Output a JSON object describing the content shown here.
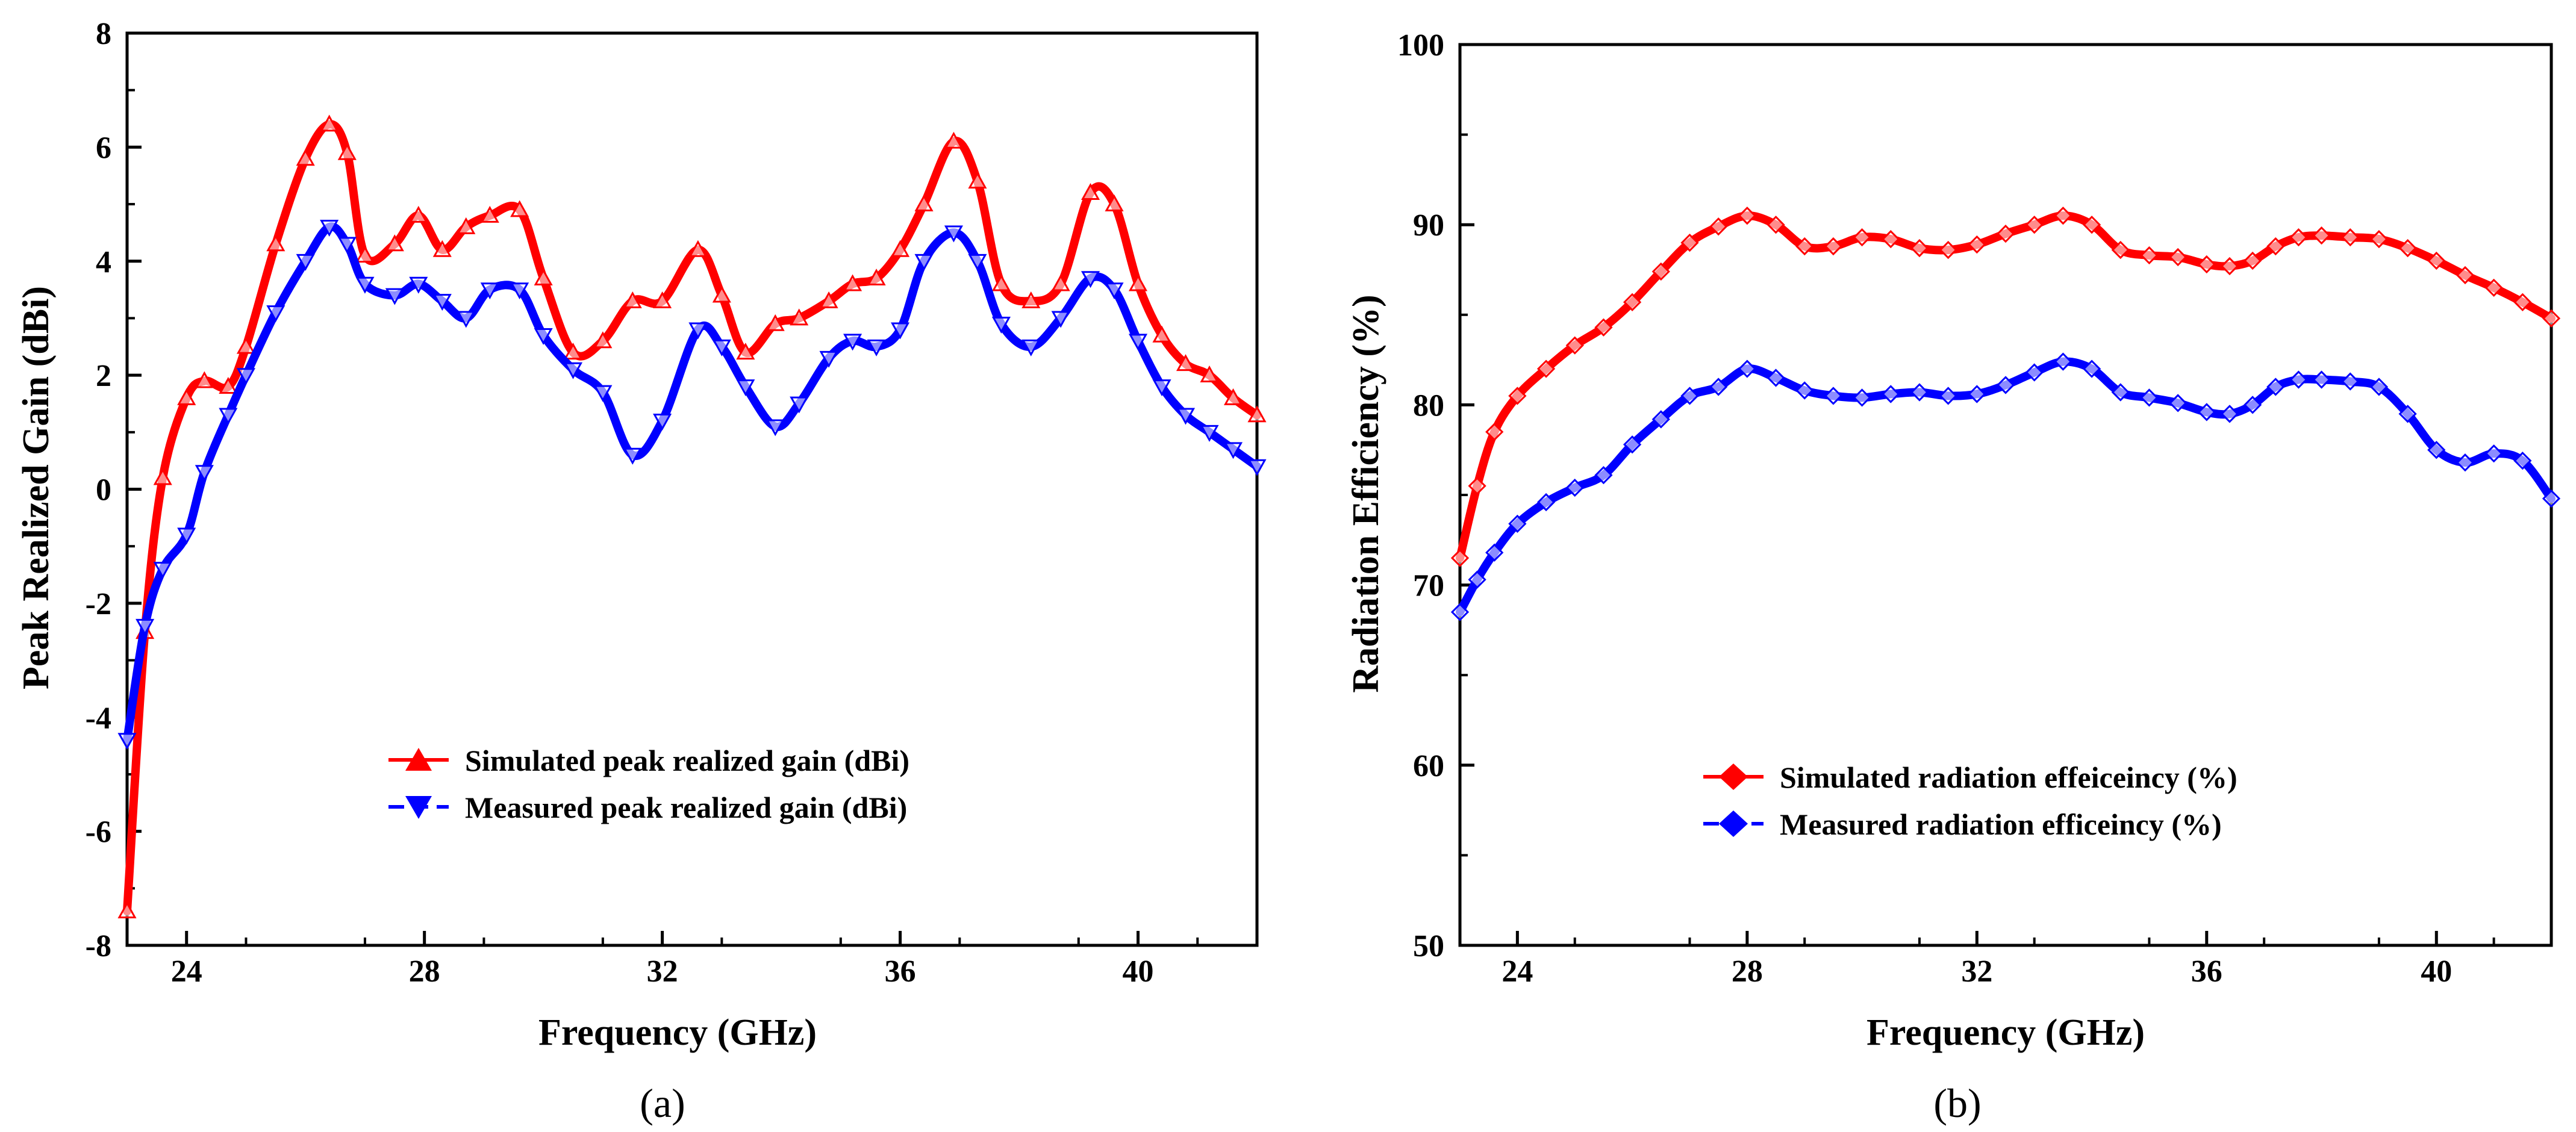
{
  "chart_data": [
    {
      "panel_label": "(a)",
      "type": "line",
      "xlabel": "Frequency (GHz)",
      "ylabel": "Peak Realized Gain (dBi)",
      "xlim": [
        23,
        42
      ],
      "ylim": [
        -8,
        8
      ],
      "xticks": [
        "24",
        "28",
        "32",
        "36",
        "40"
      ],
      "yticks": [
        "-8",
        "-6",
        "-4",
        "-2",
        "0",
        "2",
        "4",
        "6",
        "8"
      ],
      "grid": false,
      "legend_position": "center",
      "x": [
        23.0,
        23.3,
        23.6,
        24.0,
        24.3,
        24.7,
        25.0,
        25.5,
        26.0,
        26.4,
        26.7,
        27.0,
        27.5,
        27.9,
        28.3,
        28.7,
        29.1,
        29.6,
        30.0,
        30.5,
        31.0,
        31.5,
        32.0,
        32.6,
        33.0,
        33.4,
        33.9,
        34.3,
        34.8,
        35.2,
        35.6,
        36.0,
        36.4,
        36.9,
        37.3,
        37.7,
        38.2,
        38.7,
        39.2,
        39.6,
        40.0,
        40.4,
        40.8,
        41.2,
        41.6,
        42.0
      ],
      "series": [
        {
          "name": "Simulated peak realized gain (dBi)",
          "color": "#ff0000",
          "marker": "up-triangle",
          "values": [
            -7.4,
            -2.5,
            0.2,
            1.6,
            1.9,
            1.8,
            2.5,
            4.3,
            5.8,
            6.4,
            5.9,
            4.1,
            4.3,
            4.8,
            4.2,
            4.6,
            4.8,
            4.9,
            3.7,
            2.4,
            2.6,
            3.3,
            3.3,
            4.2,
            3.4,
            2.4,
            2.9,
            3.0,
            3.3,
            3.6,
            3.7,
            4.2,
            5.0,
            6.1,
            5.4,
            3.6,
            3.3,
            3.6,
            5.2,
            5.0,
            3.6,
            2.7,
            2.2,
            2.0,
            1.6,
            1.3
          ]
        },
        {
          "name": "Measured peak realized gain (dBi)",
          "color": "#0000ff",
          "marker": "down-triangle",
          "values": [
            -4.4,
            -2.4,
            -1.4,
            -0.8,
            0.3,
            1.3,
            2.0,
            3.1,
            4.0,
            4.6,
            4.3,
            3.6,
            3.4,
            3.6,
            3.3,
            3.0,
            3.5,
            3.5,
            2.7,
            2.1,
            1.7,
            0.6,
            1.2,
            2.8,
            2.5,
            1.8,
            1.1,
            1.5,
            2.3,
            2.6,
            2.5,
            2.8,
            4.0,
            4.5,
            4.0,
            2.9,
            2.5,
            3.0,
            3.7,
            3.5,
            2.6,
            1.8,
            1.3,
            1.0,
            0.7,
            0.4
          ]
        }
      ]
    },
    {
      "panel_label": "(b)",
      "type": "line",
      "xlabel": "Frequency (GHz)",
      "ylabel": "Radiation Efficiency (%)",
      "xlim": [
        23,
        42
      ],
      "ylim": [
        50,
        100
      ],
      "xticks": [
        "24",
        "28",
        "32",
        "36",
        "40"
      ],
      "yticks": [
        "50",
        "60",
        "70",
        "80",
        "90",
        "100"
      ],
      "grid": false,
      "legend_position": "center",
      "x": [
        23.0,
        23.3,
        23.6,
        24.0,
        24.5,
        25.0,
        25.5,
        26.0,
        26.5,
        27.0,
        27.5,
        28.0,
        28.5,
        29.0,
        29.5,
        30.0,
        30.5,
        31.0,
        31.5,
        32.0,
        32.5,
        33.0,
        33.5,
        34.0,
        34.5,
        35.0,
        35.5,
        36.0,
        36.4,
        36.8,
        37.2,
        37.6,
        38.0,
        38.5,
        39.0,
        39.5,
        40.0,
        40.5,
        41.0,
        41.5,
        42.0
      ],
      "series": [
        {
          "name": "Simulated radiation effeiceincy (%)",
          "color": "#ff0000",
          "marker": "diamond",
          "values": [
            71.5,
            75.5,
            78.5,
            80.5,
            82.0,
            83.3,
            84.3,
            85.7,
            87.4,
            89.0,
            89.9,
            90.5,
            90.0,
            88.8,
            88.8,
            89.3,
            89.2,
            88.7,
            88.6,
            88.9,
            89.5,
            90.0,
            90.5,
            90.0,
            88.6,
            88.3,
            88.2,
            87.8,
            87.7,
            88.0,
            88.8,
            89.3,
            89.4,
            89.3,
            89.2,
            88.7,
            88.0,
            87.2,
            86.5,
            85.7,
            84.8
          ]
        },
        {
          "name": "Measured radiation efficeincy (%)",
          "color": "#0000ff",
          "marker": "diamond",
          "values": [
            68.5,
            70.3,
            71.8,
            73.4,
            74.6,
            75.4,
            76.1,
            77.8,
            79.2,
            80.5,
            81.0,
            82.0,
            81.5,
            80.8,
            80.5,
            80.4,
            80.6,
            80.7,
            80.5,
            80.6,
            81.1,
            81.8,
            82.4,
            82.0,
            80.7,
            80.4,
            80.1,
            79.6,
            79.5,
            80.0,
            81.0,
            81.4,
            81.4,
            81.3,
            81.0,
            79.5,
            77.5,
            76.8,
            77.3,
            76.9,
            74.8
          ]
        }
      ]
    }
  ]
}
